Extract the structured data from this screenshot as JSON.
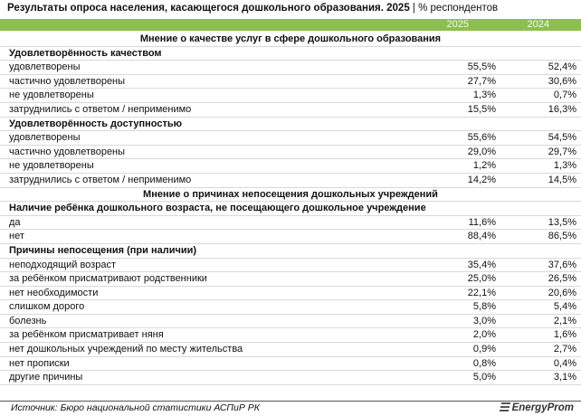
{
  "header": {
    "title": "Результаты опроса населения, касающегося дошкольного образования. 2025",
    "unit": "| % респондентов"
  },
  "table": {
    "columns": [
      "2025",
      "2024"
    ],
    "sections": [
      {
        "title": "Мнение о качестве услуг в сфере дошкольного образования",
        "groups": [
          {
            "title": "Удовлетворённость качеством",
            "rows": [
              {
                "label": "удовлетворены",
                "values": [
                  "55,5%",
                  "52,4%"
                ]
              },
              {
                "label": "частично удовлетворены",
                "values": [
                  "27,7%",
                  "30,6%"
                ]
              },
              {
                "label": "не удовлетворены",
                "values": [
                  "1,3%",
                  "0,7%"
                ]
              },
              {
                "label": "затруднились с ответом / неприменимо",
                "values": [
                  "15,5%",
                  "16,3%"
                ]
              }
            ]
          },
          {
            "title": "Удовлетворённость доступностью",
            "rows": [
              {
                "label": "удовлетворены",
                "values": [
                  "55,6%",
                  "54,5%"
                ]
              },
              {
                "label": "частично удовлетворены",
                "values": [
                  "29,0%",
                  "29,7%"
                ]
              },
              {
                "label": "не удовлетворены",
                "values": [
                  "1,2%",
                  "1,3%"
                ]
              },
              {
                "label": "затруднились с ответом / неприменимо",
                "values": [
                  "14,2%",
                  "14,5%"
                ]
              }
            ]
          }
        ]
      },
      {
        "title": "Мнение о причинах непосещения дошкольных учреждений",
        "groups": [
          {
            "title": "Наличие ребёнка дошкольного возраста, не посещающего дошкольное учреждение",
            "rows": [
              {
                "label": "да",
                "values": [
                  "11,6%",
                  "13,5%"
                ]
              },
              {
                "label": "нет",
                "values": [
                  "88,4%",
                  "86,5%"
                ]
              }
            ]
          },
          {
            "title": "Причины непосещения (при наличии)",
            "rows": [
              {
                "label": "неподходящий возраст",
                "values": [
                  "35,4%",
                  "37,6%"
                ]
              },
              {
                "label": "за ребёнком присматривают родственники",
                "values": [
                  "25,0%",
                  "26,5%"
                ]
              },
              {
                "label": "нет необходимости",
                "values": [
                  "22,1%",
                  "20,6%"
                ]
              },
              {
                "label": "слишком дорого",
                "values": [
                  "5,8%",
                  "5,4%"
                ]
              },
              {
                "label": "болезнь",
                "values": [
                  "3,0%",
                  "2,1%"
                ]
              },
              {
                "label": "за ребёнком присматривает няня",
                "values": [
                  "2,0%",
                  "1,6%"
                ]
              },
              {
                "label": "нет дошкольных учреждений по месту жительства",
                "values": [
                  "0,9%",
                  "2,7%"
                ]
              },
              {
                "label": "нет прописки",
                "values": [
                  "0,8%",
                  "0,4%"
                ]
              },
              {
                "label": "другие причины",
                "values": [
                  "5,0%",
                  "3,1%"
                ]
              }
            ]
          }
        ]
      }
    ]
  },
  "footer": {
    "source": "Источник: Бюро национальной статистики АСПиР РК",
    "logo": "EnergyProm"
  }
}
